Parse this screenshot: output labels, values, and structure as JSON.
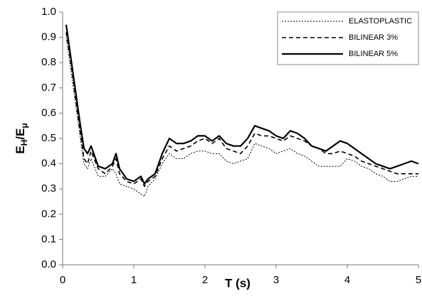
{
  "chart_data": {
    "type": "line",
    "x_label": "T (s)",
    "y_label": [
      "E",
      "H",
      "/E",
      "μ"
    ],
    "x": [
      0.05,
      0.1,
      0.15,
      0.2,
      0.25,
      0.3,
      0.35,
      0.4,
      0.5,
      0.6,
      0.7,
      0.75,
      0.8,
      0.9,
      1.0,
      1.1,
      1.15,
      1.2,
      1.3,
      1.4,
      1.5,
      1.6,
      1.7,
      1.8,
      1.9,
      2.0,
      2.1,
      2.2,
      2.3,
      2.4,
      2.5,
      2.6,
      2.7,
      2.8,
      2.9,
      3.0,
      3.1,
      3.2,
      3.3,
      3.4,
      3.5,
      3.6,
      3.7,
      3.8,
      3.9,
      4.0,
      4.1,
      4.2,
      4.3,
      4.4,
      4.5,
      4.6,
      4.7,
      4.8,
      4.9,
      5.0
    ],
    "series": [
      {
        "name": "ELASTOPLASTIC",
        "color": "#000000",
        "dash": "2,2",
        "width": 1,
        "values": [
          0.9,
          0.8,
          0.7,
          0.6,
          0.5,
          0.4,
          0.38,
          0.42,
          0.35,
          0.35,
          0.38,
          0.36,
          0.32,
          0.31,
          0.3,
          0.28,
          0.27,
          0.31,
          0.34,
          0.4,
          0.44,
          0.42,
          0.42,
          0.44,
          0.45,
          0.45,
          0.44,
          0.44,
          0.41,
          0.4,
          0.41,
          0.42,
          0.48,
          0.47,
          0.46,
          0.44,
          0.45,
          0.46,
          0.44,
          0.43,
          0.41,
          0.39,
          0.39,
          0.39,
          0.39,
          0.42,
          0.41,
          0.39,
          0.38,
          0.36,
          0.35,
          0.33,
          0.33,
          0.34,
          0.35,
          0.35
        ]
      },
      {
        "name": "BILINEAR 3%",
        "color": "#000000",
        "dash": "6,4",
        "width": 1.6,
        "values": [
          0.92,
          0.83,
          0.73,
          0.62,
          0.52,
          0.42,
          0.4,
          0.45,
          0.38,
          0.36,
          0.39,
          0.42,
          0.36,
          0.33,
          0.32,
          0.34,
          0.31,
          0.33,
          0.35,
          0.42,
          0.47,
          0.45,
          0.46,
          0.47,
          0.49,
          0.5,
          0.48,
          0.5,
          0.46,
          0.45,
          0.44,
          0.47,
          0.52,
          0.51,
          0.51,
          0.5,
          0.49,
          0.51,
          0.5,
          0.49,
          0.47,
          0.46,
          0.44,
          0.44,
          0.45,
          0.44,
          0.43,
          0.41,
          0.4,
          0.39,
          0.38,
          0.37,
          0.36,
          0.36,
          0.36,
          0.36
        ]
      },
      {
        "name": "BILINEAR 5%",
        "color": "#000000",
        "dash": "none",
        "width": 2.2,
        "values": [
          0.95,
          0.85,
          0.75,
          0.65,
          0.55,
          0.46,
          0.44,
          0.47,
          0.39,
          0.38,
          0.4,
          0.44,
          0.38,
          0.34,
          0.33,
          0.35,
          0.32,
          0.34,
          0.36,
          0.44,
          0.5,
          0.48,
          0.48,
          0.49,
          0.51,
          0.51,
          0.49,
          0.51,
          0.48,
          0.47,
          0.47,
          0.5,
          0.55,
          0.54,
          0.53,
          0.51,
          0.5,
          0.53,
          0.52,
          0.5,
          0.47,
          0.46,
          0.45,
          0.47,
          0.49,
          0.48,
          0.46,
          0.44,
          0.42,
          0.4,
          0.39,
          0.38,
          0.39,
          0.4,
          0.41,
          0.4
        ]
      }
    ],
    "xlim": [
      0,
      5
    ],
    "xticks": [
      0,
      1,
      2,
      3,
      4,
      5
    ],
    "ylim": [
      0,
      1
    ],
    "yticks": [
      {
        "value": 0,
        "label": "0.0"
      },
      0.1,
      0.2,
      0.3,
      0.4,
      0.5,
      0.6,
      0.7,
      0.8,
      0.9,
      {
        "value": 1,
        "label": "1.0"
      }
    ],
    "grid": false,
    "legend": "upper right"
  }
}
